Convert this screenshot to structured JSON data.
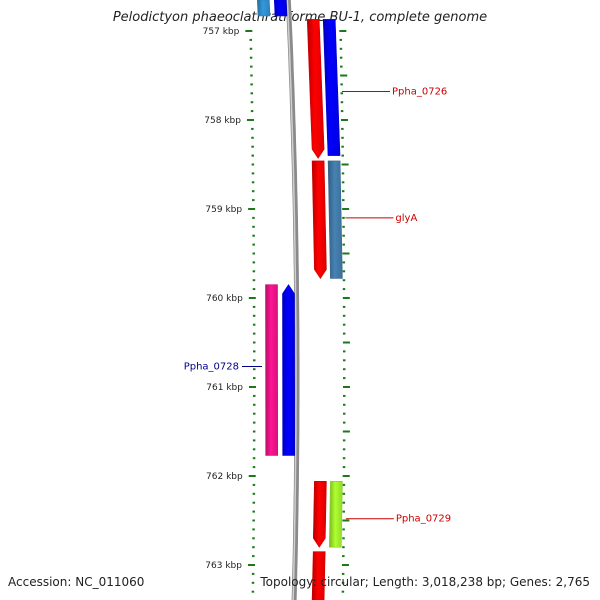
{
  "title": "Pelodictyon phaeoclathratiforme BU-1, complete genome",
  "accession": "Accession: NC_011060",
  "stats": "Topology: circular; Length: 3,018,238 bp; Genes: 2,765",
  "scale": {
    "unit": "kbp",
    "ticks": [
      {
        "label": "757 kbp",
        "kbp": 757
      },
      {
        "label": "758 kbp",
        "kbp": 758
      },
      {
        "label": "759 kbp",
        "kbp": 759
      },
      {
        "label": "760 kbp",
        "kbp": 760
      },
      {
        "label": "761 kbp",
        "kbp": 761
      },
      {
        "label": "762 kbp",
        "kbp": 762
      },
      {
        "label": "763 kbp",
        "kbp": 763
      }
    ]
  },
  "colors": {
    "tick": "#1a7a1a",
    "backbone": "#8a8a8a",
    "label_forward": "#cc0000",
    "label_reverse": "#00008b"
  },
  "features": [
    {
      "name": "",
      "strand": "reverse",
      "track": "outer",
      "start_kbp": 756.6,
      "end_kbp": 756.83,
      "color": "#3399dd",
      "arrow": "none"
    },
    {
      "name": "",
      "strand": "reverse",
      "track": "inner",
      "start_kbp": 756.6,
      "end_kbp": 756.83,
      "color": "#0000ff",
      "arrow": "none"
    },
    {
      "name": "",
      "strand": "forward",
      "track": "inner",
      "start_kbp": 756.87,
      "end_kbp": 758.43,
      "color": "#ff0000",
      "arrow": "end"
    },
    {
      "name": "Ppha_0726",
      "strand": "forward",
      "track": "outer",
      "start_kbp": 756.87,
      "end_kbp": 758.4,
      "color": "#0000ff",
      "arrow": "none",
      "label_kbp": 757.68
    },
    {
      "name": "",
      "strand": "forward",
      "track": "inner",
      "start_kbp": 758.46,
      "end_kbp": 759.78,
      "color": "#ff0000",
      "arrow": "end"
    },
    {
      "name": "glyA",
      "strand": "forward",
      "track": "outer",
      "start_kbp": 758.46,
      "end_kbp": 759.78,
      "color": "#4682b4",
      "arrow": "none",
      "label_kbp": 759.1
    },
    {
      "name": "Ppha_0728",
      "strand": "reverse",
      "track": "outer",
      "start_kbp": 759.85,
      "end_kbp": 761.77,
      "color": "#ff1493",
      "arrow": "none",
      "label_kbp": 760.77
    },
    {
      "name": "",
      "strand": "reverse",
      "track": "inner",
      "start_kbp": 759.85,
      "end_kbp": 761.77,
      "color": "#0000ff",
      "arrow": "start"
    },
    {
      "name": "",
      "strand": "forward",
      "track": "inner",
      "start_kbp": 762.06,
      "end_kbp": 762.8,
      "color": "#ff0000",
      "arrow": "end"
    },
    {
      "name": "Ppha_0729",
      "strand": "forward",
      "track": "outer",
      "start_kbp": 762.06,
      "end_kbp": 762.8,
      "color": "#adff2f",
      "arrow": "none",
      "label_kbp": 762.48
    },
    {
      "name": "",
      "strand": "forward",
      "track": "inner",
      "start_kbp": 762.85,
      "end_kbp": 763.5,
      "color": "#ff0000",
      "arrow": "none"
    }
  ]
}
